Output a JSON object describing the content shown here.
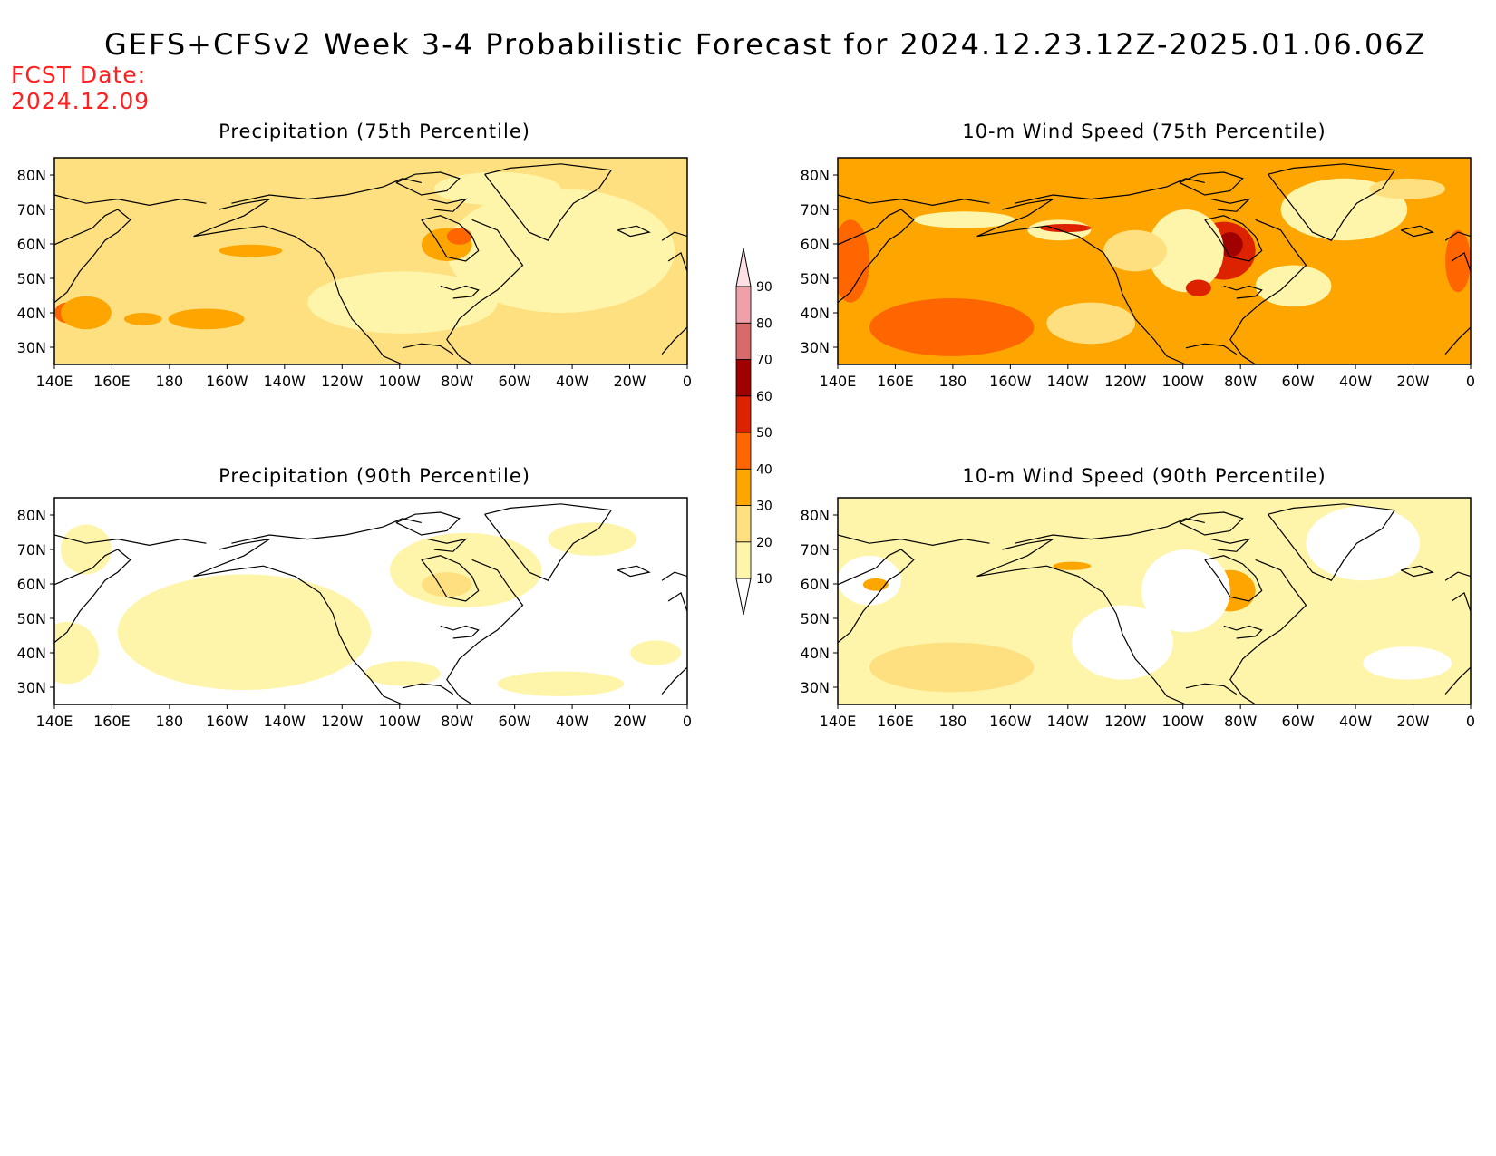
{
  "title": "GEFS+CFSv2 Week 3-4 Probabilistic Forecast for 2024.12.23.12Z-2025.01.06.06Z",
  "fcst_date": {
    "label": "FCST Date:",
    "value": "2024.12.09"
  },
  "axes": {
    "lon_labels": [
      "140E",
      "160E",
      "180",
      "160W",
      "140W",
      "120W",
      "100W",
      "80W",
      "60W",
      "40W",
      "20W",
      "0"
    ],
    "lat_labels": [
      "80N",
      "70N",
      "60N",
      "50N",
      "40N",
      "30N"
    ]
  },
  "colorbar": {
    "levels": [
      "10",
      "20",
      "30",
      "40",
      "50",
      "60",
      "70",
      "80",
      "90"
    ],
    "colors": [
      "#ffffff",
      "#fff5aa",
      "#ffe080",
      "#ffa500",
      "#ff6600",
      "#dd2200",
      "#a00000",
      "#d86a6a",
      "#f0a0a8",
      "#fde0e4"
    ]
  },
  "panels": [
    {
      "title": "Precipitation (75th Percentile)",
      "base_color": "#ffe080"
    },
    {
      "title": "10-m Wind Speed (75th Percentile)",
      "base_color": "#ffa500"
    },
    {
      "title": "Precipitation (90th Percentile)",
      "base_color": "#ffffff"
    },
    {
      "title": "10-m Wind Speed (90th Percentile)",
      "base_color": "#fff5aa"
    }
  ]
}
